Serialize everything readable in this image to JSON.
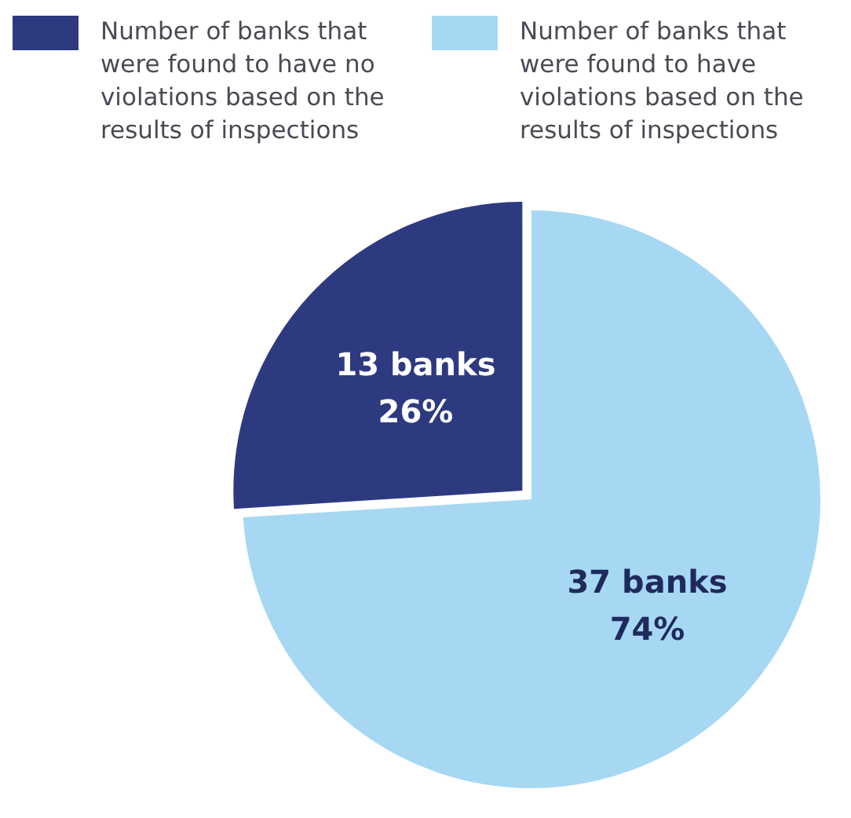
{
  "chart_data": {
    "type": "pie",
    "categories": [
      "Number of banks that were found to have no violations based on the results of inspections",
      "Number of banks that were found to have violations based on the results of inspections"
    ],
    "values": [
      13,
      37
    ],
    "colors": [
      "#2e3a80",
      "#a6d8f4"
    ],
    "value_labels": [
      "13 banks\n26%",
      "37 banks\n74%"
    ],
    "legend": "top"
  }
}
